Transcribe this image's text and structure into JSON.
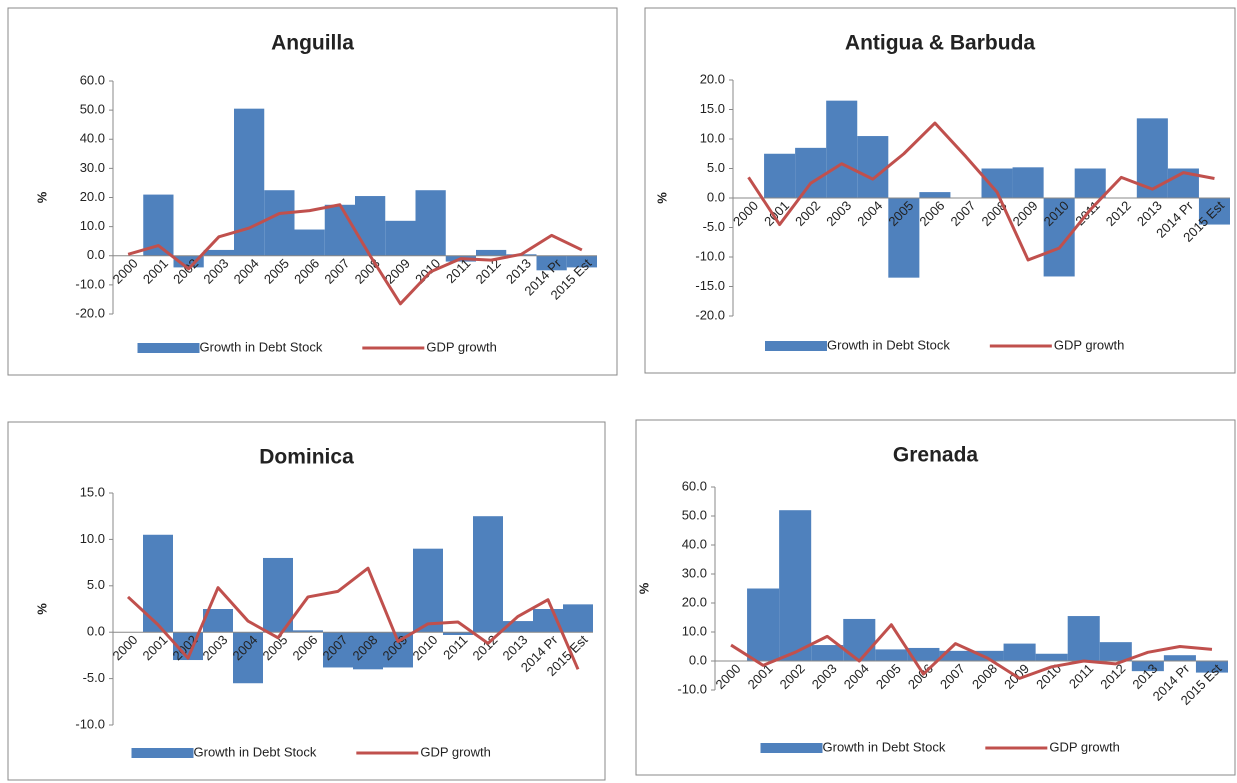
{
  "chart_data": [
    {
      "type": "combo",
      "title": "Anguilla",
      "y_label": "%",
      "categories": [
        "2000",
        "2001",
        "2002",
        "2003",
        "2004",
        "2005",
        "2006",
        "2007",
        "2008",
        "2009",
        "2010",
        "2011",
        "2012",
        "2013",
        "2014 Pr",
        "2015 Est"
      ],
      "series": [
        {
          "name": "Growth in Debt Stock",
          "type": "bar",
          "color": "#4f81bd",
          "values": [
            0,
            21,
            -4,
            2,
            50.5,
            22.5,
            9,
            17.5,
            20.5,
            12,
            22.5,
            -2,
            2,
            0.5,
            -5,
            -4
          ]
        },
        {
          "name": "GDP growth",
          "type": "line",
          "color": "#c0504d",
          "values": [
            0.5,
            3.5,
            -4.5,
            6.5,
            9.5,
            14.5,
            15.5,
            17.5,
            0,
            -16.5,
            -5.5,
            -1,
            -1.5,
            0.5,
            7,
            2
          ]
        }
      ],
      "ylim": [
        -20,
        60
      ],
      "yticks": [
        {
          "value": -20,
          "label": "-20.0"
        },
        {
          "value": -10,
          "label": "-10.0"
        },
        {
          "value": 0,
          "label": "0.0"
        },
        {
          "value": 10,
          "label": "10.0"
        },
        {
          "value": 20,
          "label": "20.0"
        },
        {
          "value": 30,
          "label": "30.0"
        },
        {
          "value": 40,
          "label": "40.0"
        },
        {
          "value": 50,
          "label": "50.0"
        },
        {
          "value": 60,
          "label": "60.0"
        }
      ],
      "grid": false
    },
    {
      "type": "combo",
      "title": "Antigua & Barbuda",
      "y_label": "%",
      "categories": [
        "2000",
        "2001",
        "2002",
        "2003",
        "2004",
        "2005",
        "2006",
        "2007",
        "2008",
        "2009",
        "2010",
        "2011",
        "2012",
        "2013",
        "2014 Pr",
        "2015 Est"
      ],
      "series": [
        {
          "name": "Growth in Debt Stock",
          "type": "bar",
          "color": "#4f81bd",
          "values": [
            0,
            7.5,
            8.5,
            16.5,
            10.5,
            -13.5,
            1,
            0,
            5,
            5.2,
            -13.3,
            5,
            0,
            13.5,
            5,
            -4.5
          ]
        },
        {
          "name": "GDP growth",
          "type": "line",
          "color": "#c0504d",
          "values": [
            3.5,
            -4.5,
            2.5,
            5.8,
            3.2,
            7.5,
            12.7,
            7,
            1,
            -10.5,
            -8.5,
            -2,
            3.5,
            1.5,
            4.3,
            3.3
          ]
        }
      ],
      "ylim": [
        -20,
        20
      ],
      "yticks": [
        {
          "value": -20,
          "label": "-20.0"
        },
        {
          "value": -15,
          "label": "-15.0"
        },
        {
          "value": -10,
          "label": "-10.0"
        },
        {
          "value": -5,
          "label": "-5.0"
        },
        {
          "value": 0,
          "label": "0.0"
        },
        {
          "value": 5,
          "label": "5.0"
        },
        {
          "value": 10,
          "label": "10.0"
        },
        {
          "value": 15,
          "label": "15.0"
        },
        {
          "value": 20,
          "label": "20.0"
        }
      ],
      "grid": false
    },
    {
      "type": "combo",
      "title": "Dominica",
      "y_label": "%",
      "categories": [
        "2000",
        "2001",
        "2002",
        "2003",
        "2004",
        "2005",
        "2006",
        "2007",
        "2008",
        "2009",
        "2010",
        "2011",
        "2012",
        "2013",
        "2014 Pr",
        "2015 Est"
      ],
      "series": [
        {
          "name": "Growth in Debt Stock",
          "type": "bar",
          "color": "#4f81bd",
          "values": [
            0,
            10.5,
            -3,
            2.5,
            -5.5,
            8,
            0.2,
            -3.8,
            -4,
            -3.8,
            9,
            -0.3,
            12.5,
            1.2,
            2.5,
            3
          ]
        },
        {
          "name": "GDP growth",
          "type": "line",
          "color": "#c0504d",
          "values": [
            3.8,
            0.8,
            -2.8,
            4.8,
            1.2,
            -0.6,
            3.8,
            4.4,
            6.9,
            -1,
            0.9,
            1.1,
            -1.2,
            1.7,
            3.5,
            -4
          ]
        }
      ],
      "ylim": [
        -10,
        15
      ],
      "yticks": [
        {
          "value": -10,
          "label": "-10.0"
        },
        {
          "value": -5,
          "label": "-5.0"
        },
        {
          "value": 0,
          "label": "0.0"
        },
        {
          "value": 5,
          "label": "5.0"
        },
        {
          "value": 10,
          "label": "10.0"
        },
        {
          "value": 15,
          "label": "15.0"
        }
      ],
      "grid": false
    },
    {
      "type": "combo",
      "title": "Grenada",
      "y_label": "%",
      "categories": [
        "2000",
        "2001",
        "2002",
        "2003",
        "2004",
        "2005",
        "2006",
        "2007",
        "2008",
        "2009",
        "2010",
        "2011",
        "2012",
        "2013",
        "2014 Pr",
        "2015 Est"
      ],
      "series": [
        {
          "name": "Growth in Debt Stock",
          "type": "bar",
          "color": "#4f81bd",
          "values": [
            0,
            25,
            52,
            5.5,
            14.5,
            4,
            4.5,
            3.5,
            3.5,
            6,
            2.5,
            15.5,
            6.5,
            -3.5,
            2,
            -4
          ]
        },
        {
          "name": "GDP growth",
          "type": "line",
          "color": "#c0504d",
          "values": [
            5.5,
            -1.5,
            3,
            8.5,
            0,
            12.5,
            -4.5,
            6,
            1,
            -6,
            -2,
            0,
            -1,
            3,
            5,
            4
          ]
        }
      ],
      "ylim": [
        -10,
        60
      ],
      "yticks": [
        {
          "value": -10,
          "label": "-10.0"
        },
        {
          "value": 0,
          "label": "0.0"
        },
        {
          "value": 10,
          "label": "10.0"
        },
        {
          "value": 20,
          "label": "20.0"
        },
        {
          "value": 30,
          "label": "30.0"
        },
        {
          "value": 40,
          "label": "40.0"
        },
        {
          "value": 50,
          "label": "50.0"
        },
        {
          "value": 60,
          "label": "60.0"
        }
      ],
      "grid": false
    }
  ]
}
